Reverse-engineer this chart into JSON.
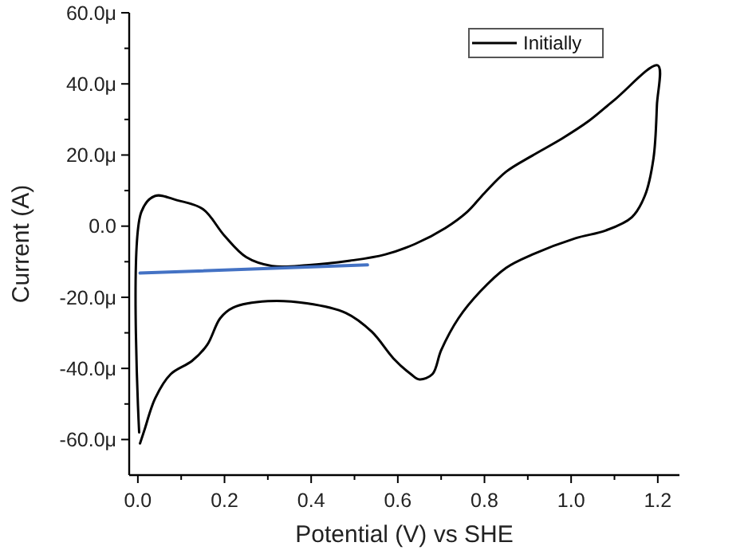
{
  "chart_data": {
    "type": "line",
    "xlabel": "Potential (V) vs SHE",
    "ylabel": "Current (A)",
    "xlim": [
      -0.02,
      1.25
    ],
    "ylim": [
      -70,
      60
    ],
    "xticks": [
      {
        "value": 0,
        "label": "0.0"
      },
      {
        "value": 0.1,
        "label": null
      },
      {
        "value": 0.2,
        "label": "0.2"
      },
      {
        "value": 0.3,
        "label": null
      },
      {
        "value": 0.4,
        "label": "0.4"
      },
      {
        "value": 0.5,
        "label": null
      },
      {
        "value": 0.6,
        "label": "0.6"
      },
      {
        "value": 0.7,
        "label": null
      },
      {
        "value": 0.8,
        "label": "0.8"
      },
      {
        "value": 0.9,
        "label": null
      },
      {
        "value": 1.0,
        "label": "1.0"
      },
      {
        "value": 1.1,
        "label": null
      },
      {
        "value": 1.2,
        "label": "1.2"
      }
    ],
    "yticks": [
      {
        "value": -60,
        "label": "-60.0μ"
      },
      {
        "value": -50,
        "label": null
      },
      {
        "value": -40,
        "label": "-40.0μ"
      },
      {
        "value": -30,
        "label": null
      },
      {
        "value": -20,
        "label": "-20.0μ"
      },
      {
        "value": -10,
        "label": null
      },
      {
        "value": 0,
        "label": "0.0"
      },
      {
        "value": 10,
        "label": null
      },
      {
        "value": 20,
        "label": "20.0μ"
      },
      {
        "value": 30,
        "label": null
      },
      {
        "value": 40,
        "label": "40.0μ"
      },
      {
        "value": 50,
        "label": null
      },
      {
        "value": 60,
        "label": "60.0μ"
      }
    ],
    "grid": false,
    "legend": "top right",
    "line_style": "solid",
    "series": [
      {
        "name": "Initially",
        "color": "#000000",
        "x": [
          0.003,
          0.008,
          0.04,
          0.09,
          0.15,
          0.2,
          0.25,
          0.31,
          0.39,
          0.49,
          0.57,
          0.64,
          0.71,
          0.76,
          0.8,
          0.85,
          0.91,
          0.98,
          1.04,
          1.1,
          1.2,
          1.198,
          1.19,
          1.17,
          1.14,
          1.08,
          1.01,
          0.91,
          0.85,
          0.79,
          0.74,
          0.7,
          0.68,
          0.65,
          0.63,
          0.59,
          0.54,
          0.48,
          0.39,
          0.3,
          0.22,
          0.19,
          0.16,
          0.125,
          0.076,
          0.04,
          0.015,
          0.005
        ],
        "values": [
          -58,
          4,
          8.5,
          7.3,
          4.8,
          -2.7,
          -8.7,
          -11.2,
          -11,
          -9.7,
          -8,
          -5,
          -0.5,
          4,
          9.3,
          15.3,
          19.8,
          24.7,
          29.5,
          35.5,
          45.2,
          34,
          19,
          8.5,
          2.5,
          -1.2,
          -3.4,
          -8,
          -11.7,
          -18.4,
          -25.9,
          -34.9,
          -41.6,
          -43.1,
          -41.6,
          -37.2,
          -29.7,
          -24.4,
          -21.7,
          -21.1,
          -22.9,
          -25.9,
          -33.4,
          -37.9,
          -41.6,
          -48.4,
          -57.4,
          -61.1
        ]
      },
      {
        "color": "#4472c4",
        "x": [
          0.005,
          0.53
        ],
        "values": [
          -13.2,
          -10.9
        ]
      }
    ]
  }
}
